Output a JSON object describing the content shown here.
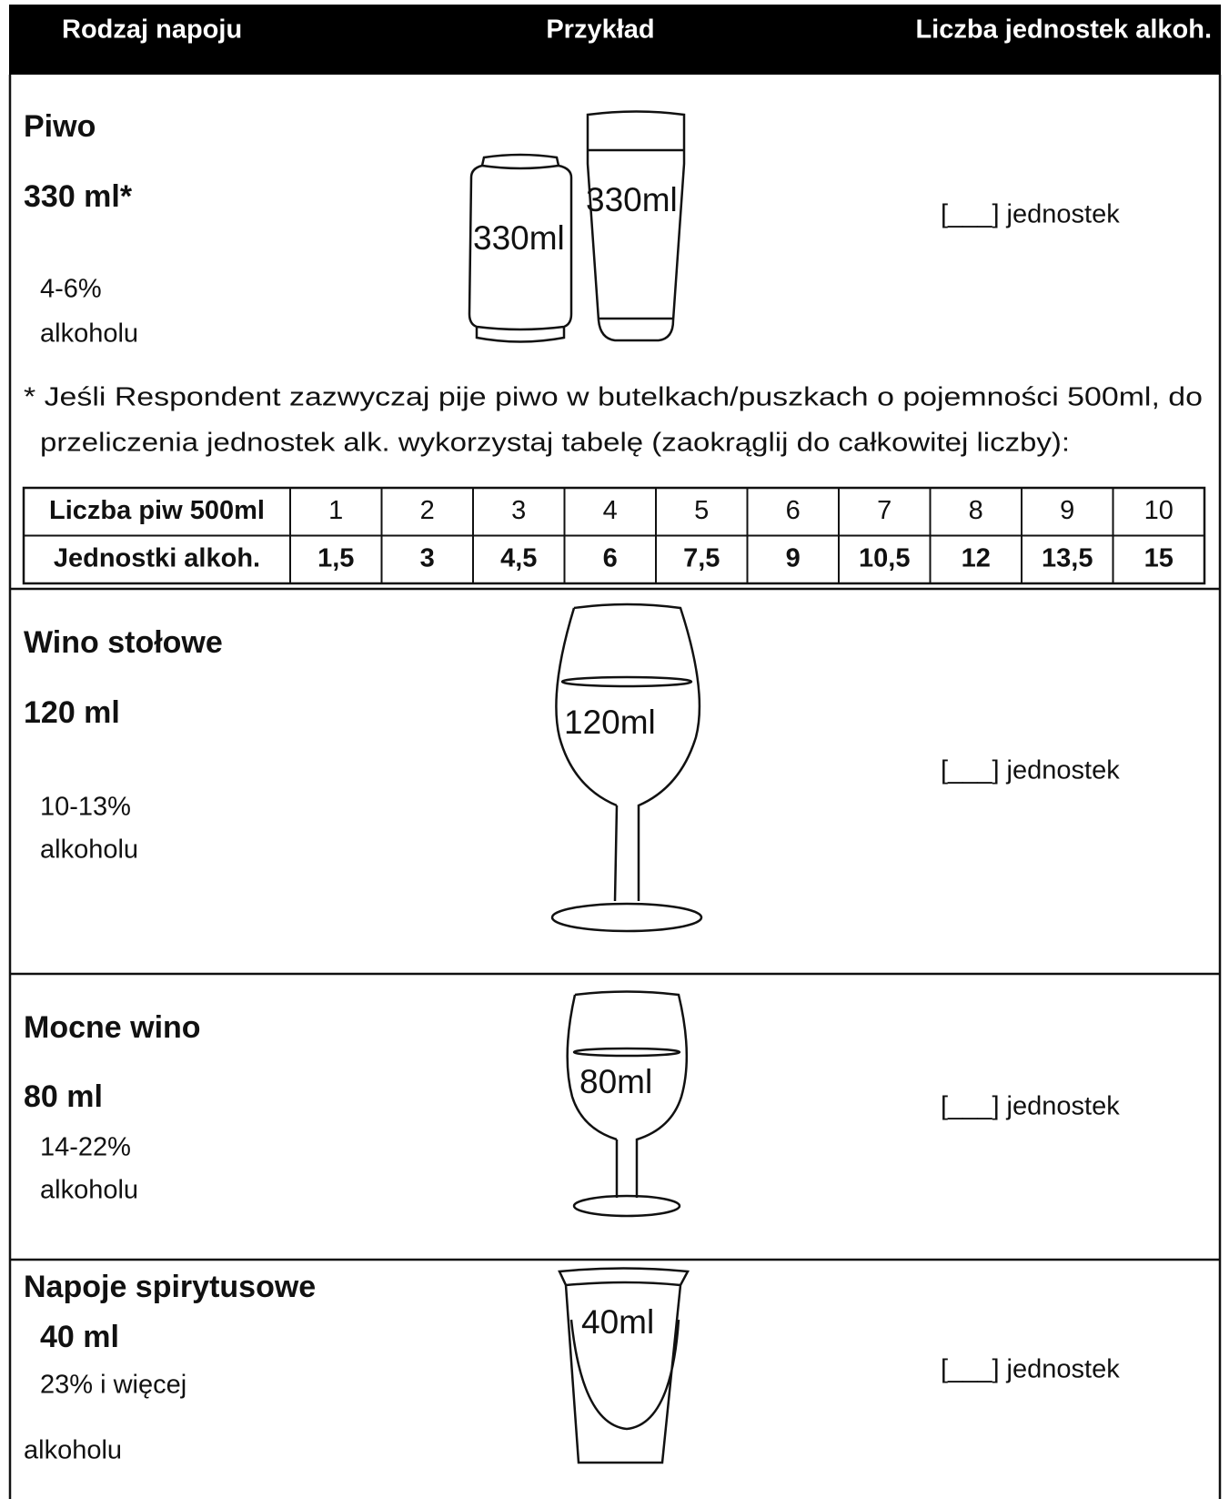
{
  "header": {
    "col1": "Rodzaj napoju",
    "col2": "Przykład",
    "col3": "Liczba jednostek alkoh."
  },
  "sections": [
    {
      "title": "Piwo",
      "volume": "330 ml*",
      "strength": [
        "4-6%",
        "alkoholu"
      ],
      "illustration_labels": [
        "330ml",
        "330ml"
      ],
      "answer": "[___] jednostek"
    },
    {
      "title": "Wino stołowe",
      "volume": "120 ml",
      "strength": [
        "10-13%",
        "alkoholu"
      ],
      "illustration_labels": [
        "120ml"
      ],
      "answer": "[___] jednostek"
    },
    {
      "title": "Mocne wino",
      "volume": "80 ml",
      "strength": [
        "14-22%",
        "alkoholu"
      ],
      "illustration_labels": [
        "80ml"
      ],
      "answer": "[___] jednostek"
    },
    {
      "title": "Napoje spirytusowe",
      "volume": "40 ml",
      "strength": [
        "23% i więcej",
        "alkoholu"
      ],
      "illustration_labels": [
        "40ml"
      ],
      "answer": "[___] jednostek"
    }
  ],
  "footnote": [
    "* Jeśli Respondent zazwyczaj pije piwo w butelkach/puszkach o pojemności 500ml, do",
    "przeliczenia jednostek alk. wykorzystaj tabelę (zaokrąglij do całkowitej liczby):"
  ],
  "conversion_table": {
    "rows": [
      [
        "Liczba piw 500ml",
        "1",
        "2",
        "3",
        "4",
        "5",
        "6",
        "7",
        "8",
        "9",
        "10"
      ],
      [
        "Jednostki alkoh.",
        "1,5",
        "3",
        "4,5",
        "6",
        "7,5",
        "9",
        "10,5",
        "12",
        "13,5",
        "15"
      ]
    ]
  }
}
